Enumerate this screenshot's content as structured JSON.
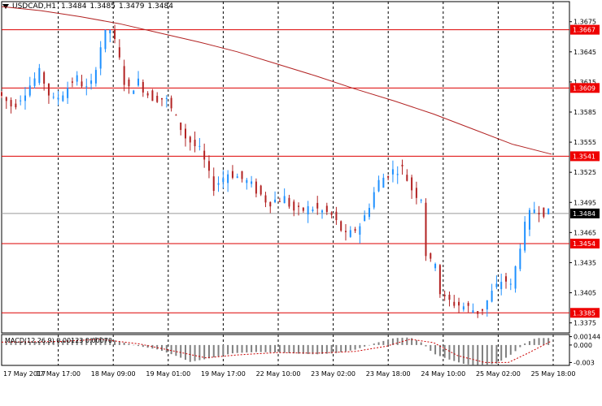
{
  "header": {
    "symbol": "USDCAD,H1",
    "open": "1.3484",
    "high": "1.3485",
    "low": "1.3479",
    "close": "1.3484"
  },
  "colors": {
    "bull_candle": "#1e90ff",
    "bear_candle": "#b22222",
    "moving_average": "#b22222",
    "level_line": "#dd0000",
    "level_tag_bg": "#ee0000",
    "current_tag_bg": "#000000",
    "macd_histogram": "#808080",
    "macd_signal": "#cc0000",
    "grid": "#000000",
    "background": "#ffffff"
  },
  "chart_data": [
    {
      "type": "candlestick",
      "title": "USDCAD,H1",
      "ylim": [
        1.3365,
        1.3695
      ],
      "yticks": [
        "1.3675",
        "1.3645",
        "1.3615",
        "1.3585",
        "1.3555",
        "1.3525",
        "1.3495",
        "1.3465",
        "1.3435",
        "1.3405",
        "1.3375"
      ],
      "xticks": [
        "17 May 2017",
        "17 May 17:00",
        "18 May 09:00",
        "19 May 01:00",
        "19 May 17:00",
        "22 May 10:00",
        "23 May 02:00",
        "23 May 18:00",
        "24 May 10:00",
        "25 May 02:00",
        "25 May 18:00"
      ],
      "horizontal_levels": [
        "1.3667",
        "1.3609",
        "1.3541",
        "1.3454",
        "1.3385"
      ],
      "current_price": "1.3484",
      "series": [
        {
          "type": "moving_average",
          "values": [
            [
              0,
              1.369
            ],
            [
              20,
              1.3686
            ],
            [
              40,
              1.368
            ],
            [
              60,
              1.3673
            ],
            [
              80,
              1.3664
            ],
            [
              100,
              1.3655
            ],
            [
              120,
              1.3645
            ],
            [
              140,
              1.3633
            ],
            [
              160,
              1.3621
            ],
            [
              180,
              1.3608
            ],
            [
              200,
              1.3596
            ],
            [
              220,
              1.3583
            ],
            [
              240,
              1.3568
            ],
            [
              260,
              1.3553
            ],
            [
              280,
              1.3543
            ]
          ]
        },
        {
          "type": "ohlc_path",
          "values": [
            [
              0,
              1.3605
            ],
            [
              8,
              1.359
            ],
            [
              16,
              1.361
            ],
            [
              22,
              1.3625
            ],
            [
              28,
              1.3595
            ],
            [
              34,
              1.3605
            ],
            [
              40,
              1.362
            ],
            [
              47,
              1.3605
            ],
            [
              54,
              1.366
            ],
            [
              58,
              1.3668
            ],
            [
              62,
              1.364
            ],
            [
              66,
              1.3605
            ],
            [
              72,
              1.3615
            ],
            [
              78,
              1.36
            ],
            [
              86,
              1.3598
            ],
            [
              96,
              1.356
            ],
            [
              104,
              1.3545
            ],
            [
              110,
              1.351
            ],
            [
              118,
              1.3525
            ],
            [
              128,
              1.3515
            ],
            [
              138,
              1.3495
            ],
            [
              146,
              1.35
            ],
            [
              152,
              1.3485
            ],
            [
              160,
              1.349
            ],
            [
              170,
              1.3483
            ],
            [
              178,
              1.346
            ],
            [
              186,
              1.3475
            ],
            [
              194,
              1.3515
            ],
            [
              200,
              1.3525
            ],
            [
              206,
              1.353
            ],
            [
              212,
              1.3505
            ],
            [
              216,
              1.35
            ],
            [
              219,
              1.343
            ],
            [
              223,
              1.344
            ],
            [
              226,
              1.34
            ],
            [
              232,
              1.3395
            ],
            [
              240,
              1.339
            ],
            [
              246,
              1.3385
            ],
            [
              252,
              1.3405
            ],
            [
              258,
              1.342
            ],
            [
              262,
              1.341
            ],
            [
              266,
              1.345
            ],
            [
              270,
              1.348
            ],
            [
              274,
              1.349
            ],
            [
              280,
              1.3484
            ]
          ]
        }
      ]
    },
    {
      "type": "bar",
      "title": "MACD(12,26,9) 0.00123 0.00070",
      "ylim": [
        -0.0035,
        0.0018
      ],
      "yticks": [
        "0.00144",
        "0.000",
        "-0.003"
      ],
      "series": [
        {
          "name": "MACD",
          "values": [
            [
              0,
              0.0006
            ],
            [
              20,
              0.0005
            ],
            [
              40,
              0.001
            ],
            [
              50,
              0.0014
            ],
            [
              60,
              0.0006
            ],
            [
              70,
              -0.0002
            ],
            [
              80,
              -0.0008
            ],
            [
              90,
              -0.002
            ],
            [
              96,
              -0.0029
            ],
            [
              104,
              -0.0024
            ],
            [
              118,
              -0.0014
            ],
            [
              130,
              -0.0012
            ],
            [
              142,
              -0.0013
            ],
            [
              152,
              -0.0015
            ],
            [
              160,
              -0.0016
            ],
            [
              170,
              -0.0014
            ],
            [
              180,
              -0.0008
            ],
            [
              190,
              0.0003
            ],
            [
              200,
              0.0012
            ],
            [
              208,
              0.0013
            ],
            [
              214,
              0.0004
            ],
            [
              220,
              -0.0015
            ],
            [
              228,
              -0.0025
            ],
            [
              236,
              -0.0033
            ],
            [
              244,
              -0.0035
            ],
            [
              252,
              -0.0032
            ],
            [
              260,
              -0.0015
            ],
            [
              266,
              0.0002
            ],
            [
              272,
              0.0012
            ],
            [
              280,
              0.0012
            ]
          ]
        },
        {
          "name": "Signal",
          "values": [
            [
              0,
              0.0005
            ],
            [
              30,
              0.0006
            ],
            [
              50,
              0.001
            ],
            [
              70,
              0.0002
            ],
            [
              90,
              -0.0012
            ],
            [
              104,
              -0.0022
            ],
            [
              120,
              -0.0017
            ],
            [
              140,
              -0.0013
            ],
            [
              160,
              -0.0014
            ],
            [
              180,
              -0.0011
            ],
            [
              196,
              -0.0002
            ],
            [
              208,
              0.001
            ],
            [
              220,
              0.0004
            ],
            [
              232,
              -0.0018
            ],
            [
              246,
              -0.003
            ],
            [
              258,
              -0.003
            ],
            [
              268,
              -0.0014
            ],
            [
              280,
              0.0007
            ]
          ]
        }
      ]
    }
  ]
}
